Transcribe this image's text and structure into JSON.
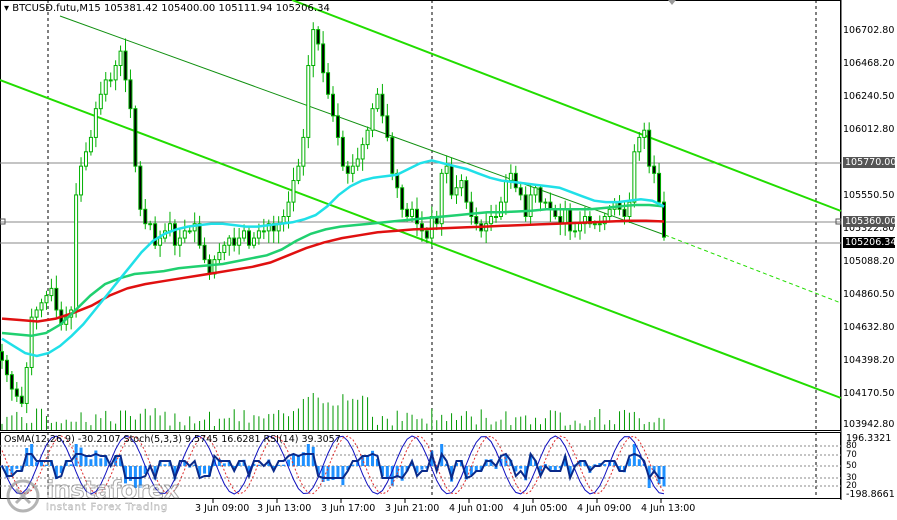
{
  "symbol_header": "BTCUSD.futu,M15  105381.42 105400.00 105111.94 105206.34",
  "oscillator_header": "OsMA(12,26,9) -30.2107  Stoch(5,3,3) 9.5745 16.6281  RSI(14) 39.3057",
  "colors": {
    "candles": "#00b000",
    "ma_fast": "#20e0e8",
    "ma_mid": "#20d070",
    "ma_slow": "#e01010",
    "channel": "#22dd00",
    "volume": "#009900",
    "osma": "#1e90ff"
  },
  "price_axis": {
    "labels": [
      "106702.80",
      "106468.20",
      "106240.50",
      "106012.80",
      "105550.50",
      "105322.80",
      "105088.20",
      "104860.50",
      "104632.80",
      "104398.20",
      "104170.50",
      "103942.80"
    ]
  },
  "price_badges": {
    "upper_level": "105770.00",
    "mid_level": "105360.00",
    "current": "105206.34"
  },
  "oscillator_axis": {
    "max": "196.3321",
    "level_80": "80",
    "level_70": "70",
    "level_50": "50",
    "level_30": "30",
    "level_20": "20",
    "min": "-198.8661"
  },
  "time_axis": [
    "3 Jun 09:00",
    "3 Jun 13:00",
    "3 Jun 17:00",
    "3 Jun 21:00",
    "4 Jun 01:00",
    "4 Jun 05:00",
    "4 Jun 09:00",
    "4 Jun 13:00"
  ],
  "watermark": {
    "brand": "instaforex",
    "tagline": "Instant Forex Trading"
  },
  "chart_data": {
    "type": "candlestick",
    "symbol": "BTCUSD.futu",
    "timeframe": "M15",
    "ohlc_last": {
      "open": 105381.42,
      "high": 105400.0,
      "low": 105111.94,
      "close": 105206.34
    },
    "ylim": [
      103900,
      106800
    ],
    "series": [
      {
        "name": "close",
        "values": [
          104350,
          104250,
          104150,
          104100,
          104050,
          104300,
          104650,
          104700,
          104750,
          104800,
          104850,
          104700,
          104600,
          104650,
          104700,
          105500,
          105700,
          105800,
          105900,
          106100,
          106200,
          106300,
          106300,
          106400,
          106500,
          106300,
          106100,
          105700,
          105400,
          105300,
          105300,
          105150,
          105200,
          105250,
          105300,
          105150,
          105200,
          105250,
          105250,
          105300,
          105150,
          105050,
          104950,
          105050,
          105100,
          105150,
          105200,
          105150,
          105200,
          105250,
          105150,
          105200,
          105250,
          105250,
          105300,
          105250,
          105300,
          105350,
          105450,
          105600,
          105700,
          105900,
          106400,
          106650,
          106550,
          106350,
          106200,
          106050,
          105900,
          105700,
          105650,
          105700,
          105750,
          105850,
          105950,
          106100,
          106200,
          106050,
          105900,
          105650,
          105550,
          105400,
          105350,
          105400,
          105300,
          105250,
          105200,
          105350,
          105300,
          105650,
          105700,
          105500,
          105550,
          105600,
          105450,
          105350,
          105300,
          105250,
          105300,
          105350,
          105350,
          105450,
          105600,
          105650,
          105550,
          105500,
          105350,
          105500,
          105550,
          105450,
          105450,
          105400,
          105350,
          105300,
          105400,
          105250,
          105250,
          105300,
          105350,
          105300,
          105300,
          105300,
          105350,
          105400,
          105450,
          105400,
          105350,
          105450,
          105800,
          105900,
          105950,
          105700,
          105650,
          105450,
          105206
        ]
      },
      {
        "name": "ma_fast",
        "values": [
          104500,
          104450,
          104400,
          104380,
          104400,
          104450,
          104520,
          104600,
          104700,
          104800,
          104900,
          105000,
          105100,
          105180,
          105230,
          105260,
          105280,
          105290,
          105300,
          105300,
          105290,
          105280,
          105280,
          105290,
          105300,
          105310,
          105330,
          105360,
          105420,
          105500,
          105560,
          105600,
          105620,
          105630,
          105640,
          105680,
          105720,
          105740,
          105720,
          105700,
          105680,
          105650,
          105620,
          105600,
          105590,
          105580,
          105570,
          105560,
          105550,
          105520,
          105490,
          105460,
          105450,
          105450,
          105460,
          105470,
          105460,
          105420
        ]
      },
      {
        "name": "ma_mid",
        "values": [
          104540,
          104530,
          104520,
          104540,
          104600,
          104700,
          104800,
          104880,
          104920,
          104950,
          104960,
          104970,
          104990,
          105000,
          105010,
          105020,
          105040,
          105060,
          105080,
          105120,
          105180,
          105230,
          105260,
          105280,
          105290,
          105300,
          105310,
          105320,
          105330,
          105340,
          105350,
          105360,
          105370,
          105380,
          105380,
          105385,
          105390,
          105400,
          105400,
          105400,
          105400,
          105410,
          105420,
          105430,
          105430,
          105420
        ]
      },
      {
        "name": "ma_slow",
        "values": [
          104640,
          104630,
          104620,
          104640,
          104680,
          104730,
          104800,
          104850,
          104880,
          104900,
          104920,
          104940,
          104960,
          104980,
          105000,
          105030,
          105080,
          105130,
          105170,
          105200,
          105220,
          105240,
          105250,
          105260,
          105265,
          105270,
          105275,
          105280,
          105285,
          105290,
          105295,
          105300,
          105305,
          105310,
          105315,
          105320,
          105320,
          105315
        ]
      }
    ],
    "horizontal_levels": [
      105770.0,
      105360.0,
      105206.34
    ],
    "oscillators": {
      "osma": -30.2107,
      "stoch_main": 9.5745,
      "stoch_signal": 16.6281,
      "rsi": 39.3057
    }
  }
}
